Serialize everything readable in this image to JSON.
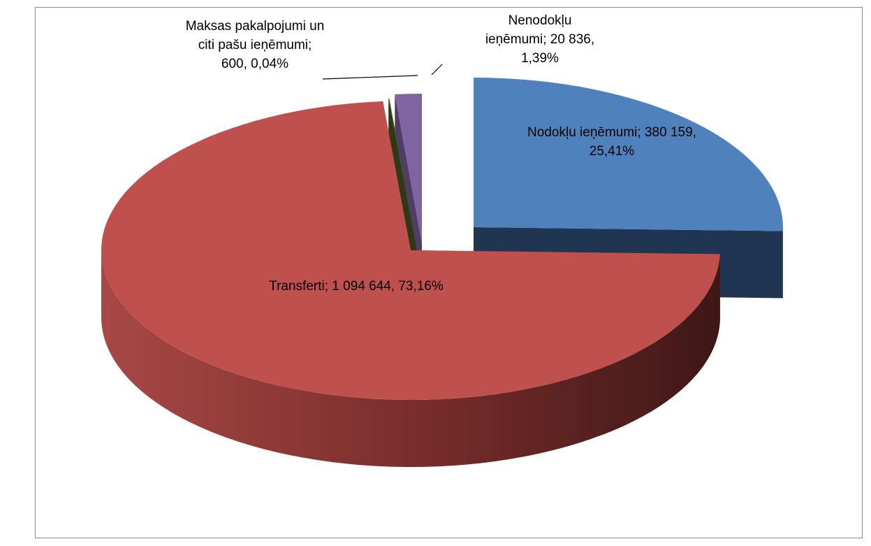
{
  "chart_data": {
    "type": "pie3d",
    "categories": [
      "Nodokļu ieņēmumi;",
      "Transferti;",
      "Maksas pakalpojumi un citi pašu ieņēmumi;",
      "Nenodokļu ieņēmumi;"
    ],
    "values": [
      380159,
      1094644,
      600,
      20836
    ],
    "value_labels": [
      "380 159, 25,41%",
      "1 094 644, 73,16%",
      "600, 0,04%",
      "20 836, 1,39%"
    ],
    "colors": [
      "#4f81bd",
      "#c0504d",
      "#4f6228",
      "#8064a2"
    ],
    "side_colors": [
      "#1f3551",
      "#8a3230",
      "#2e3a17",
      "#4f3d66"
    ]
  }
}
